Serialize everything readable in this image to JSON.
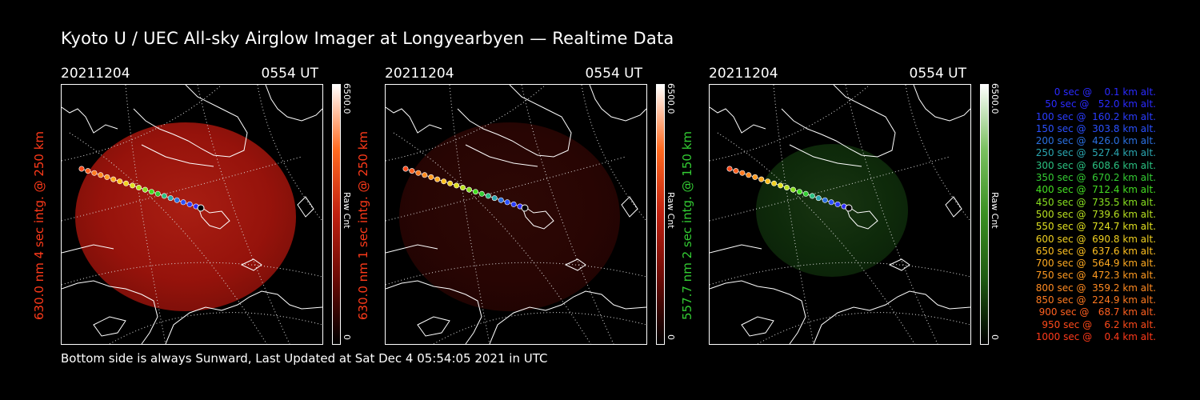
{
  "title": "Kyoto U / UEC All-sky Airglow Imager at Longyearbyen — Realtime Data",
  "footer": "Bottom side is always Sunward, Last Updated at Sat Dec  4 05:54:05 2021 in UTC",
  "colors": {
    "red_channel": "#cc1a10",
    "green_channel": "#2f7a1c",
    "legend_blue": "#2a3cff",
    "legend_teal": "#2aa6b0",
    "legend_green": "#33cc33",
    "legend_yellow": "#e0e020",
    "legend_orange": "#ff9a20",
    "legend_red": "#ff3a1a"
  },
  "panels": [
    {
      "date": "20211204",
      "time": "0554 UT",
      "ylabel": "630.0 nm 4 sec intg. @ 250 km",
      "ylabel_color": "#ff3a1a",
      "colorbar_max": "6500.0",
      "colorbar_unit": "Raw Cnt",
      "colorbar_min": "0",
      "channel": "red",
      "intensity": 0.75
    },
    {
      "date": "20211204",
      "time": "0554 UT",
      "ylabel": "630.0 nm 1 sec intg. @ 250 km",
      "ylabel_color": "#ff3a1a",
      "colorbar_max": "6500.0",
      "colorbar_unit": "Raw Cnt",
      "colorbar_min": "0",
      "channel": "red",
      "intensity": 0.2
    },
    {
      "date": "20211204",
      "time": "0554 UT",
      "ylabel": "557.7 nm 2 sec intg. @ 150 km",
      "ylabel_color": "#33cc33",
      "colorbar_max": "6500.0",
      "colorbar_unit": "Raw Cnt",
      "colorbar_min": "0",
      "channel": "green",
      "intensity": 0.35
    }
  ],
  "legend": [
    {
      "text": "0 sec @    0.1 km alt.",
      "color": "#2a2aff"
    },
    {
      "text": "50 sec @   52.0 km alt.",
      "color": "#2a2aff"
    },
    {
      "text": "100 sec @  160.2 km alt.",
      "color": "#2a3cff"
    },
    {
      "text": "150 sec @  303.8 km alt.",
      "color": "#2a50ff"
    },
    {
      "text": "200 sec @  426.0 km alt.",
      "color": "#2a70e0"
    },
    {
      "text": "250 sec @  527.4 km alt.",
      "color": "#2aa6b0"
    },
    {
      "text": "300 sec @  608.6 km alt.",
      "color": "#2ac080"
    },
    {
      "text": "350 sec @  670.2 km alt.",
      "color": "#33cc33"
    },
    {
      "text": "400 sec @  712.4 km alt.",
      "color": "#44dd22"
    },
    {
      "text": "450 sec @  735.5 km alt.",
      "color": "#88e020"
    },
    {
      "text": "500 sec @  739.6 km alt.",
      "color": "#b8e020"
    },
    {
      "text": "550 sec @  724.7 km alt.",
      "color": "#e0e020"
    },
    {
      "text": "600 sec @  690.8 km alt.",
      "color": "#f0d020"
    },
    {
      "text": "650 sec @  637.6 km alt.",
      "color": "#ffc020"
    },
    {
      "text": "700 sec @  564.9 km alt.",
      "color": "#ffaa20"
    },
    {
      "text": "750 sec @  472.3 km alt.",
      "color": "#ff9a20"
    },
    {
      "text": "800 sec @  359.2 km alt.",
      "color": "#ff8a20"
    },
    {
      "text": "850 sec @  224.9 km alt.",
      "color": "#ff7a20"
    },
    {
      "text": "900 sec @   68.7 km alt.",
      "color": "#ff6020"
    },
    {
      "text": "950 sec @    6.2 km alt.",
      "color": "#ff4a1a"
    },
    {
      "text": "1000 sec @    0.4 km alt.",
      "color": "#ff3a1a"
    }
  ]
}
